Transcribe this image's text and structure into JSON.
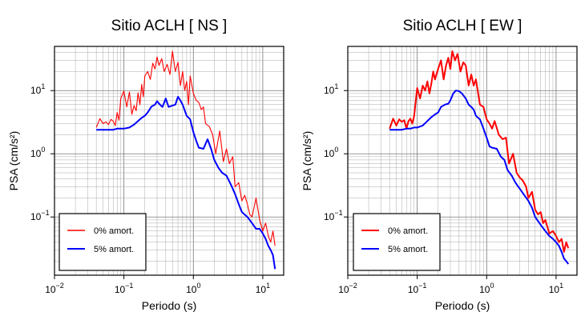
{
  "chart_data": [
    {
      "type": "line",
      "title": "Sitio ACLH [ NS ]",
      "xlabel": "Periodo (s)",
      "ylabel": "PSA (cm/s²)",
      "xscale": "log",
      "yscale": "log",
      "xlim": [
        0.01,
        20
      ],
      "ylim": [
        0.012,
        50
      ],
      "grid": true,
      "legend": "bottom-left",
      "xticks": [
        {
          "base": "10",
          "exp": "−2",
          "value": 0.01
        },
        {
          "base": "10",
          "exp": "−1",
          "value": 0.1
        },
        {
          "base": "10",
          "exp": "0",
          "value": 1
        },
        {
          "base": "10",
          "exp": "1",
          "value": 10
        }
      ],
      "yticks": [
        {
          "base": "10",
          "exp": "−1",
          "value": 0.1
        },
        {
          "base": "10",
          "exp": "0",
          "value": 1
        },
        {
          "base": "10",
          "exp": "1",
          "value": 10
        }
      ],
      "series": [
        {
          "name": "0% amort.",
          "color": "#ff0000",
          "x": [
            0.04,
            0.045,
            0.05,
            0.055,
            0.06,
            0.065,
            0.07,
            0.075,
            0.08,
            0.085,
            0.09,
            0.1,
            0.11,
            0.12,
            0.13,
            0.14,
            0.15,
            0.16,
            0.17,
            0.18,
            0.19,
            0.2,
            0.22,
            0.24,
            0.26,
            0.28,
            0.3,
            0.32,
            0.35,
            0.38,
            0.42,
            0.46,
            0.5,
            0.55,
            0.6,
            0.65,
            0.7,
            0.75,
            0.8,
            0.85,
            0.9,
            1.0,
            1.1,
            1.2,
            1.3,
            1.4,
            1.5,
            1.7,
            1.9,
            2.1,
            2.4,
            2.7,
            3.0,
            3.3,
            3.7,
            4.0,
            4.5,
            5.0,
            5.5,
            6.0,
            6.5,
            7.0,
            8.0,
            9.0,
            10.0,
            11.0,
            12.0,
            13.0,
            14.0,
            15.0
          ],
          "y": [
            2.6,
            3.6,
            3.0,
            3.2,
            2.9,
            3.5,
            3.3,
            2.8,
            4.5,
            3.4,
            7.5,
            9.8,
            5.5,
            9.5,
            4.2,
            5.8,
            4.8,
            9.2,
            6.0,
            12.5,
            8.0,
            17.0,
            20.0,
            15.0,
            27.0,
            22.0,
            34.0,
            25.0,
            32.0,
            20.0,
            26.0,
            18.0,
            42.0,
            20.0,
            28.0,
            12.0,
            20.0,
            10.0,
            14.0,
            6.0,
            17.0,
            9.0,
            7.0,
            6.5,
            5.0,
            5.5,
            3.0,
            2.7,
            2.0,
            1.0,
            2.3,
            0.75,
            1.2,
            0.7,
            0.9,
            0.3,
            0.35,
            0.18,
            0.22,
            0.16,
            0.11,
            0.1,
            0.2,
            0.09,
            0.06,
            0.08,
            0.05,
            0.04,
            0.06,
            0.035
          ]
        },
        {
          "name": "5% amort.",
          "color": "#0000ff",
          "x": [
            0.04,
            0.05,
            0.06,
            0.07,
            0.08,
            0.09,
            0.1,
            0.12,
            0.14,
            0.16,
            0.18,
            0.2,
            0.22,
            0.25,
            0.28,
            0.3,
            0.33,
            0.36,
            0.4,
            0.44,
            0.5,
            0.55,
            0.6,
            0.65,
            0.7,
            0.8,
            0.9,
            1.0,
            1.1,
            1.2,
            1.4,
            1.6,
            1.8,
            2.0,
            2.3,
            2.6,
            3.0,
            3.5,
            4.0,
            4.5,
            5.0,
            6.0,
            7.0,
            8.0,
            9.0,
            10.0,
            11.0,
            12.0,
            13.0,
            14.0,
            15.0
          ],
          "y": [
            2.4,
            2.4,
            2.4,
            2.4,
            2.5,
            2.5,
            2.5,
            2.6,
            2.9,
            3.3,
            3.7,
            4.0,
            4.5,
            5.6,
            6.0,
            6.8,
            6.0,
            5.5,
            7.5,
            5.5,
            5.8,
            6.0,
            8.0,
            7.0,
            6.0,
            4.0,
            3.5,
            2.2,
            1.6,
            1.25,
            1.2,
            1.7,
            1.2,
            0.8,
            0.6,
            0.5,
            0.45,
            0.32,
            0.23,
            0.16,
            0.12,
            0.1,
            0.08,
            0.065,
            0.065,
            0.055,
            0.045,
            0.035,
            0.03,
            0.025,
            0.015
          ]
        }
      ]
    },
    {
      "type": "line",
      "title": "Sitio ACLH [ EW ]",
      "xlabel": "Periodo (s)",
      "ylabel": "PSA (cm/s²)",
      "xscale": "log",
      "yscale": "log",
      "xlim": [
        0.01,
        20
      ],
      "ylim": [
        0.012,
        50
      ],
      "grid": true,
      "legend": "bottom-left",
      "xticks": [
        {
          "base": "10",
          "exp": "−2",
          "value": 0.01
        },
        {
          "base": "10",
          "exp": "−1",
          "value": 0.1
        },
        {
          "base": "10",
          "exp": "0",
          "value": 1
        },
        {
          "base": "10",
          "exp": "1",
          "value": 10
        }
      ],
      "yticks": [
        {
          "base": "10",
          "exp": "−1",
          "value": 0.1
        },
        {
          "base": "10",
          "exp": "0",
          "value": 1
        },
        {
          "base": "10",
          "exp": "1",
          "value": 10
        }
      ],
      "series": [
        {
          "name": "0% amort.",
          "color": "#ff0000",
          "x": [
            0.04,
            0.045,
            0.05,
            0.055,
            0.06,
            0.065,
            0.07,
            0.075,
            0.08,
            0.085,
            0.09,
            0.1,
            0.11,
            0.12,
            0.13,
            0.14,
            0.15,
            0.16,
            0.17,
            0.18,
            0.2,
            0.22,
            0.24,
            0.26,
            0.28,
            0.3,
            0.32,
            0.35,
            0.38,
            0.42,
            0.46,
            0.5,
            0.55,
            0.6,
            0.65,
            0.7,
            0.8,
            0.9,
            1.0,
            1.1,
            1.2,
            1.3,
            1.5,
            1.7,
            1.9,
            2.1,
            2.4,
            2.7,
            3.0,
            3.3,
            3.7,
            4.0,
            4.5,
            5.0,
            5.5,
            6.0,
            6.5,
            7.0,
            8.0,
            9.0,
            10.0,
            11.0,
            12.0,
            13.0,
            14.0,
            15.0
          ],
          "y": [
            2.5,
            3.6,
            2.8,
            3.5,
            3.2,
            3.4,
            2.5,
            3.3,
            3.6,
            3.0,
            3.9,
            11.0,
            7.5,
            12.0,
            10.0,
            14.0,
            9.0,
            13.0,
            20.0,
            15.0,
            22.0,
            30.0,
            15.0,
            25.0,
            33.0,
            22.0,
            42.0,
            30.0,
            38.0,
            20.0,
            28.0,
            25.0,
            12.0,
            18.0,
            12.0,
            15.0,
            6.0,
            5.5,
            3.5,
            3.0,
            2.5,
            3.3,
            2.0,
            1.7,
            1.8,
            0.7,
            1.0,
            0.5,
            0.42,
            0.38,
            0.3,
            0.2,
            0.25,
            0.13,
            0.11,
            0.12,
            0.08,
            0.09,
            0.055,
            0.06,
            0.05,
            0.04,
            0.045,
            0.028,
            0.04,
            0.032
          ]
        },
        {
          "name": "5% amort.",
          "color": "#0000ff",
          "x": [
            0.04,
            0.05,
            0.06,
            0.07,
            0.08,
            0.09,
            0.1,
            0.12,
            0.14,
            0.16,
            0.18,
            0.2,
            0.22,
            0.25,
            0.28,
            0.3,
            0.33,
            0.36,
            0.4,
            0.44,
            0.5,
            0.55,
            0.6,
            0.65,
            0.7,
            0.8,
            0.9,
            1.0,
            1.1,
            1.2,
            1.4,
            1.6,
            1.8,
            2.0,
            2.3,
            2.6,
            3.0,
            3.5,
            4.0,
            4.5,
            5.0,
            6.0,
            7.0,
            8.0,
            9.0,
            10.0,
            11.0,
            12.0,
            13.0,
            14.0,
            15.0
          ],
          "y": [
            2.4,
            2.4,
            2.4,
            2.5,
            2.5,
            2.6,
            2.6,
            2.8,
            3.3,
            3.8,
            4.2,
            4.5,
            5.5,
            6.0,
            6.2,
            7.0,
            9.0,
            10.0,
            9.8,
            9.0,
            7.5,
            6.0,
            5.5,
            5.0,
            4.0,
            3.5,
            2.5,
            1.8,
            1.3,
            1.25,
            1.2,
            0.9,
            0.8,
            0.55,
            0.45,
            0.35,
            0.28,
            0.22,
            0.18,
            0.14,
            0.1,
            0.075,
            0.06,
            0.05,
            0.045,
            0.04,
            0.035,
            0.028,
            0.022,
            0.02,
            0.018
          ]
        }
      ]
    }
  ]
}
